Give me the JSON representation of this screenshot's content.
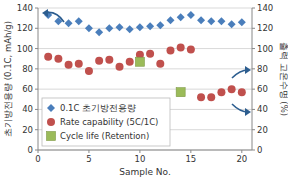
{
  "chart_data": {
    "type": "scatter",
    "x_label": "Sample No.",
    "y_label": "초기방전용량 (0.1C, mAh/g)",
    "y2_label": "출력 고온수명 (%)",
    "x": [
      1,
      2,
      3,
      4,
      5,
      6,
      7,
      8,
      9,
      10,
      11,
      12,
      13,
      14,
      15,
      16,
      17,
      18,
      19,
      20
    ],
    "xlim": [
      0,
      21
    ],
    "xticks": [
      0,
      5,
      10,
      15,
      20
    ],
    "ylim": [
      0,
      140
    ],
    "yticks": [
      0,
      20,
      40,
      60,
      80,
      100,
      120,
      140
    ],
    "y2lim": [
      0,
      140
    ],
    "y2ticks": [
      0,
      20,
      40,
      60,
      80,
      100,
      120,
      140
    ],
    "grid": true,
    "legend": "lower left",
    "series": [
      {
        "name": "0.1C 초기방전용량",
        "color": "#4a7ebb",
        "marker": "diamond",
        "values": [
          133,
          127,
          125,
          127,
          120,
          116,
          120,
          121,
          119,
          121,
          122,
          123,
          128,
          131,
          133,
          128,
          127,
          127,
          124,
          126
        ]
      },
      {
        "name": "Rate capability (5C/1C)",
        "color": "#c0504d",
        "marker": "circle",
        "axis": "y2",
        "values": [
          92,
          90,
          84,
          85,
          78,
          88,
          89,
          82,
          87,
          94,
          95,
          85,
          98,
          101,
          99,
          52,
          52,
          57,
          60,
          57
        ]
      },
      {
        "name": "Cycle life (Retention)",
        "color": "#9bbb59",
        "marker": "square",
        "axis": "y2",
        "values": [
          null,
          null,
          null,
          null,
          null,
          null,
          null,
          null,
          null,
          87,
          null,
          null,
          null,
          57,
          null,
          null,
          null,
          null,
          null,
          null
        ]
      }
    ]
  }
}
